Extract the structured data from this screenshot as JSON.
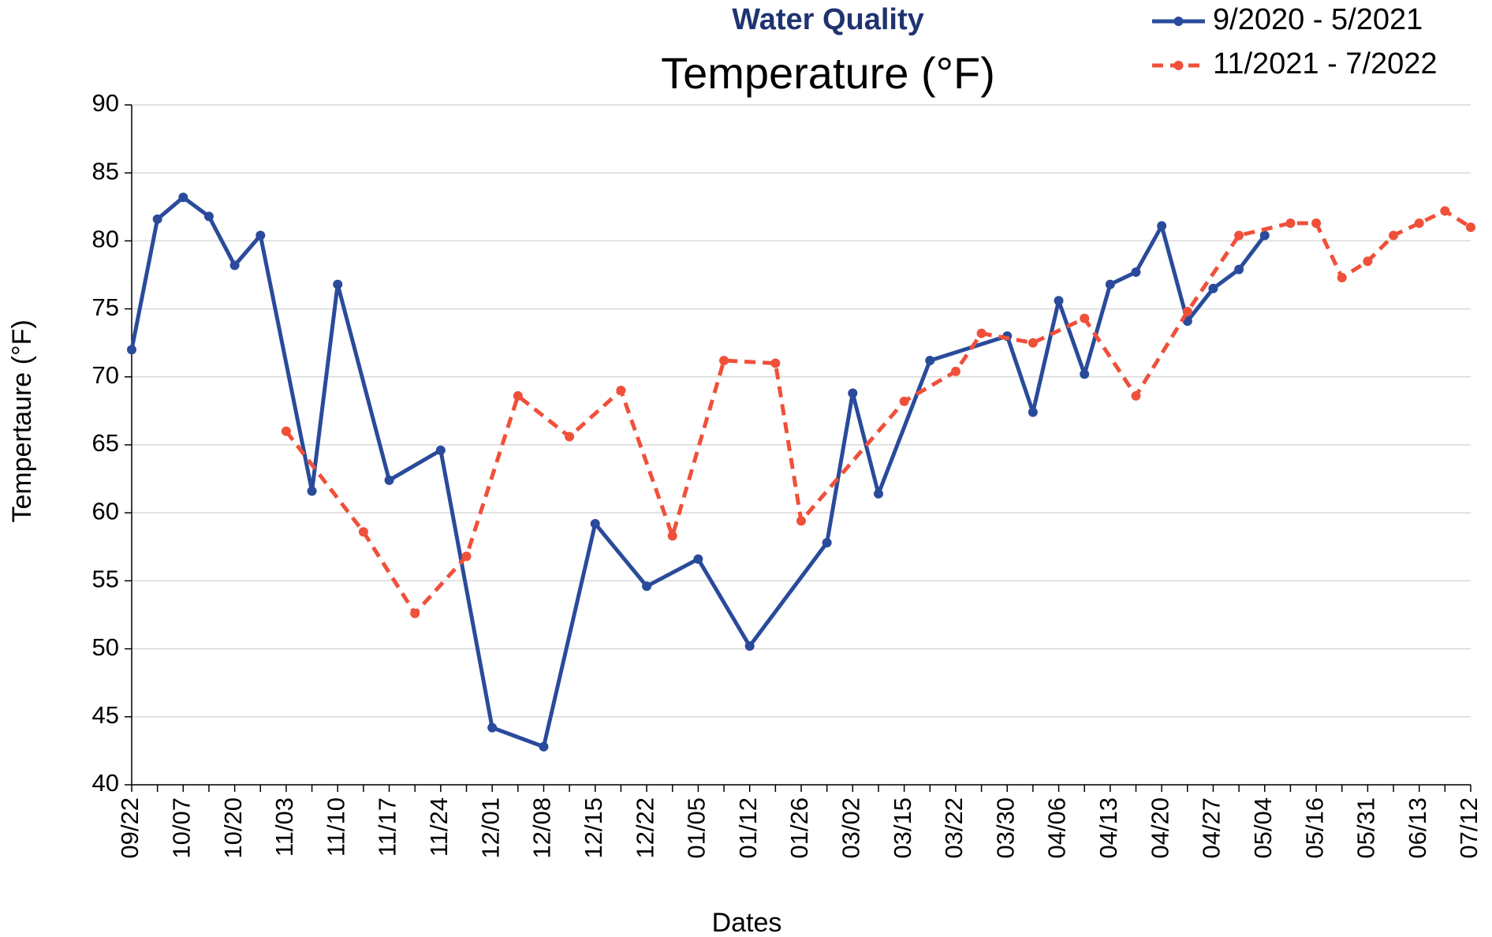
{
  "chart_data": {
    "type": "line",
    "title": "Water Quality",
    "subtitle": "Temperature (°F)",
    "x_label": "Dates",
    "y_label": "Tempertaure (°F)",
    "categories": [
      "09/22",
      null,
      "10/07",
      null,
      "10/20",
      null,
      "11/03",
      null,
      "11/10",
      null,
      "11/17",
      null,
      "11/24",
      null,
      "12/01",
      null,
      "12/08",
      null,
      "12/15",
      null,
      "12/22",
      null,
      "01/05",
      null,
      "01/12",
      null,
      "01/26",
      null,
      "03/02",
      null,
      "03/15",
      null,
      "03/22",
      null,
      "03/30",
      null,
      "04/06",
      null,
      "04/13",
      null,
      "04/20",
      null,
      "04/27",
      null,
      "05/04",
      null,
      "05/16",
      null,
      "05/31",
      null,
      "06/13",
      null,
      "07/12"
    ],
    "series": [
      {
        "name": "9/2020 - 5/2021",
        "color": "#2a4b9b",
        "dash": "solid",
        "values": [
          72.0,
          81.6,
          83.2,
          81.8,
          78.2,
          80.4,
          null,
          61.6,
          76.8,
          null,
          62.4,
          null,
          64.6,
          null,
          44.2,
          null,
          42.8,
          null,
          59.2,
          null,
          54.6,
          null,
          56.6,
          null,
          50.2,
          null,
          null,
          57.8,
          68.8,
          61.4,
          null,
          71.2,
          null,
          null,
          73.0,
          67.4,
          75.6,
          70.2,
          76.8,
          77.7,
          81.1,
          74.1,
          76.5,
          77.9,
          80.4,
          null,
          null,
          null,
          null,
          null,
          null,
          null,
          null
        ]
      },
      {
        "name": "11/2021 - 7/2022",
        "color": "#f0503a",
        "dash": "dashed",
        "values": [
          null,
          null,
          null,
          null,
          null,
          null,
          66.0,
          null,
          null,
          58.6,
          null,
          52.6,
          null,
          56.8,
          null,
          68.6,
          null,
          65.6,
          null,
          69.0,
          null,
          58.3,
          null,
          71.2,
          null,
          71.0,
          59.4,
          null,
          null,
          null,
          68.2,
          null,
          70.4,
          73.2,
          null,
          72.5,
          null,
          74.3,
          null,
          68.6,
          null,
          74.8,
          null,
          80.4,
          null,
          81.3,
          81.3,
          77.3,
          78.5,
          80.4,
          81.3,
          82.2,
          81.0
        ]
      }
    ],
    "connect_gaps": true,
    "ylim": [
      40,
      90
    ],
    "yticks": [
      40,
      45,
      50,
      55,
      60,
      65,
      70,
      75,
      80,
      85,
      90
    ],
    "grid": true,
    "legend": "top-right"
  }
}
